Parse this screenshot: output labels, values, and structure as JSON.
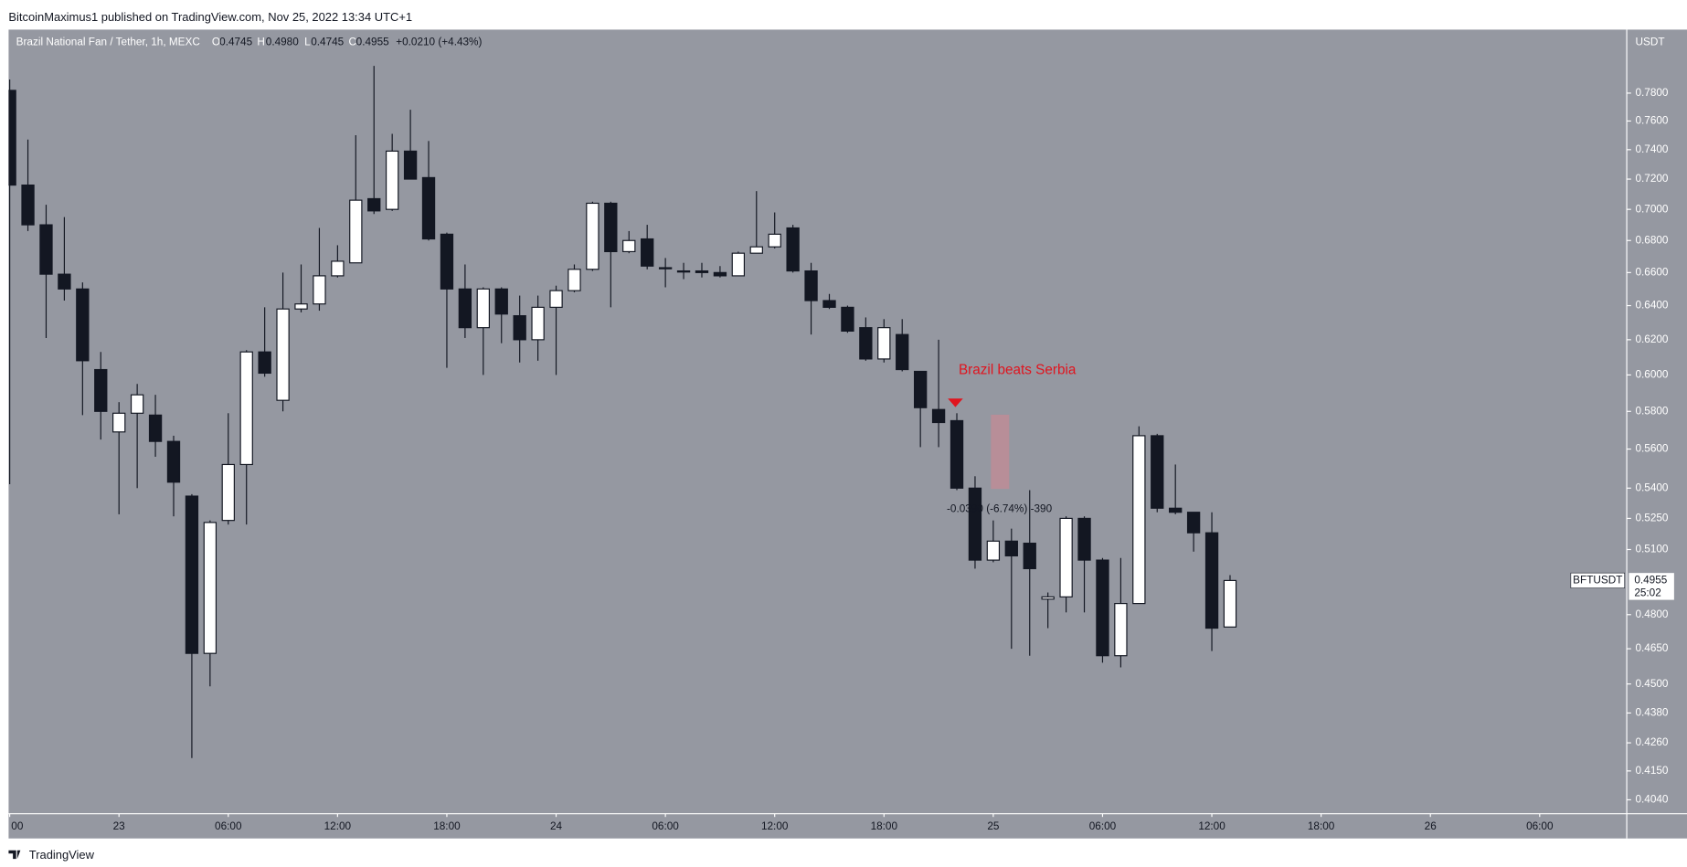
{
  "publisher": "BitcoinMaximus1 published on TradingView.com, Nov 25, 2022 13:34 UTC+1",
  "footer": "TradingView",
  "chart_data": {
    "type": "candlestick",
    "title": "Brazil National Fan / Tether, 1h, MEXC",
    "header_ohlc": {
      "open_label": "O",
      "open": "0.4745",
      "high_label": "H",
      "high": "0.4980",
      "low_label": "L",
      "low": "0.4745",
      "close_label": "C",
      "close": "0.4955",
      "change": "+0.0210 (+4.43%)"
    },
    "y_axis_label": "USDT",
    "symbol": "BFTUSDT",
    "last_price": "0.4955",
    "countdown": "25:02",
    "annotation": "Brazil beats Serbia",
    "measure": "-0.0390 (-6.74%) -390",
    "log_scale": true,
    "grid": false,
    "up_color": "#ffffff",
    "down_color": "#131722",
    "x": [
      -6,
      -5,
      -4,
      -3,
      -2,
      -1,
      0,
      1,
      2,
      3,
      4,
      5,
      6,
      7,
      8,
      9,
      10,
      11,
      12,
      13,
      14,
      15,
      16,
      17,
      18,
      19,
      20,
      21,
      22,
      23,
      24,
      25,
      26,
      27,
      28,
      29,
      30,
      31,
      32,
      33,
      34,
      35,
      36,
      37,
      38,
      39,
      40,
      41,
      42,
      43,
      44,
      45,
      46,
      47,
      48,
      49,
      50,
      51,
      52,
      53,
      54,
      55,
      56,
      57,
      58,
      59,
      60,
      61
    ],
    "open": [
      0.782,
      0.716,
      0.69,
      0.659,
      0.65,
      0.603,
      0.569,
      0.579,
      0.578,
      0.564,
      0.536,
      0.463,
      0.524,
      0.552,
      0.613,
      0.586,
      0.638,
      0.641,
      0.658,
      0.666,
      0.707,
      0.7,
      0.739,
      0.721,
      0.684,
      0.65,
      0.627,
      0.65,
      0.634,
      0.62,
      0.639,
      0.649,
      0.662,
      0.704,
      0.673,
      0.681,
      0.663,
      0.661,
      0.661,
      0.66,
      0.658,
      0.672,
      0.676,
      0.688,
      0.661,
      0.643,
      0.639,
      0.627,
      0.609,
      0.623,
      0.602,
      0.581,
      0.575,
      0.54,
      0.505,
      0.514,
      0.513,
      0.487,
      0.488,
      0.525,
      0.505,
      0.462,
      0.485,
      0.567,
      0.53,
      0.528,
      0.518,
      0.4745
    ],
    "high": [
      0.79,
      0.747,
      0.703,
      0.695,
      0.654,
      0.613,
      0.585,
      0.595,
      0.589,
      0.567,
      0.537,
      0.524,
      0.579,
      0.614,
      0.639,
      0.66,
      0.665,
      0.688,
      0.677,
      0.75,
      0.8,
      0.751,
      0.768,
      0.746,
      0.685,
      0.665,
      0.651,
      0.651,
      0.646,
      0.646,
      0.652,
      0.665,
      0.705,
      0.705,
      0.686,
      0.69,
      0.669,
      0.666,
      0.666,
      0.664,
      0.673,
      0.712,
      0.698,
      0.69,
      0.666,
      0.647,
      0.64,
      0.633,
      0.632,
      0.632,
      0.602,
      0.62,
      0.579,
      0.546,
      0.524,
      0.52,
      0.539,
      0.49,
      0.526,
      0.526,
      0.506,
      0.506,
      0.572,
      0.568,
      0.552,
      0.528,
      0.528,
      0.498
    ],
    "low": [
      0.542,
      0.686,
      0.621,
      0.643,
      0.578,
      0.565,
      0.527,
      0.54,
      0.556,
      0.526,
      0.42,
      0.449,
      0.522,
      0.522,
      0.599,
      0.58,
      0.636,
      0.637,
      0.657,
      0.666,
      0.697,
      0.699,
      0.72,
      0.68,
      0.604,
      0.621,
      0.6,
      0.618,
      0.607,
      0.608,
      0.6,
      0.648,
      0.661,
      0.639,
      0.672,
      0.662,
      0.651,
      0.656,
      0.657,
      0.657,
      0.658,
      0.672,
      0.675,
      0.66,
      0.623,
      0.638,
      0.624,
      0.608,
      0.607,
      0.602,
      0.561,
      0.561,
      0.539,
      0.501,
      0.504,
      0.465,
      0.462,
      0.474,
      0.481,
      0.481,
      0.459,
      0.457,
      0.485,
      0.528,
      0.527,
      0.509,
      0.464,
      0.4745
    ],
    "close": [
      0.716,
      0.69,
      0.659,
      0.65,
      0.608,
      0.58,
      0.579,
      0.589,
      0.564,
      0.543,
      0.463,
      0.523,
      0.552,
      0.613,
      0.601,
      0.638,
      0.641,
      0.658,
      0.667,
      0.706,
      0.699,
      0.739,
      0.72,
      0.681,
      0.65,
      0.627,
      0.65,
      0.635,
      0.62,
      0.639,
      0.649,
      0.662,
      0.704,
      0.673,
      0.68,
      0.664,
      0.663,
      0.661,
      0.66,
      0.658,
      0.672,
      0.676,
      0.684,
      0.661,
      0.643,
      0.639,
      0.625,
      0.609,
      0.627,
      0.603,
      0.582,
      0.574,
      0.54,
      0.505,
      0.514,
      0.507,
      0.501,
      0.488,
      0.525,
      0.505,
      0.462,
      0.485,
      0.567,
      0.53,
      0.528,
      0.518,
      0.474,
      0.4955
    ],
    "xlim": [
      -6.06,
      82.78
    ],
    "xticks": [
      {
        "value": -6,
        "label": "00"
      },
      {
        "value": 0,
        "label": "23"
      },
      {
        "value": 6,
        "label": "06:00"
      },
      {
        "value": 12,
        "label": "12:00"
      },
      {
        "value": 18,
        "label": "18:00"
      },
      {
        "value": 24,
        "label": "24"
      },
      {
        "value": 30,
        "label": "06:00"
      },
      {
        "value": 36,
        "label": "12:00"
      },
      {
        "value": 42,
        "label": "18:00"
      },
      {
        "value": 48,
        "label": "25"
      },
      {
        "value": 54,
        "label": "06:00"
      },
      {
        "value": 60,
        "label": "12:00"
      },
      {
        "value": 66,
        "label": "18:00"
      },
      {
        "value": 72,
        "label": "26"
      },
      {
        "value": 78,
        "label": "06:00"
      }
    ],
    "ylim": [
      0.3988,
      0.8275
    ],
    "yticks": [
      {
        "value": 0.404,
        "label": "0.4040"
      },
      {
        "value": 0.415,
        "label": "0.4150"
      },
      {
        "value": 0.426,
        "label": "0.4260"
      },
      {
        "value": 0.438,
        "label": "0.4380"
      },
      {
        "value": 0.45,
        "label": "0.4500"
      },
      {
        "value": 0.465,
        "label": "0.4650"
      },
      {
        "value": 0.48,
        "label": "0.4800"
      },
      {
        "value": 0.51,
        "label": "0.5100"
      },
      {
        "value": 0.525,
        "label": "0.5250"
      },
      {
        "value": 0.54,
        "label": "0.5400"
      },
      {
        "value": 0.56,
        "label": "0.5600"
      },
      {
        "value": 0.58,
        "label": "0.5800"
      },
      {
        "value": 0.6,
        "label": "0.6000"
      },
      {
        "value": 0.62,
        "label": "0.6200"
      },
      {
        "value": 0.64,
        "label": "0.6400"
      },
      {
        "value": 0.66,
        "label": "0.6600"
      },
      {
        "value": 0.68,
        "label": "0.6800"
      },
      {
        "value": 0.7,
        "label": "0.7000"
      },
      {
        "value": 0.72,
        "label": "0.7200"
      },
      {
        "value": 0.74,
        "label": "0.7400"
      },
      {
        "value": 0.76,
        "label": "0.7600"
      },
      {
        "value": 0.78,
        "label": "0.7800"
      }
    ]
  }
}
